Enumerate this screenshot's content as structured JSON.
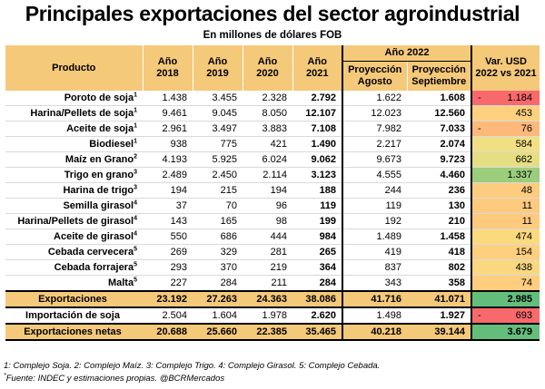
{
  "title": "Principales exportaciones del sector agroindustrial",
  "subtitle": "En millones de dólares FOB",
  "header": {
    "producto": "Producto",
    "y2018": [
      "Año",
      "2018"
    ],
    "y2019": [
      "Año",
      "2019"
    ],
    "y2020": [
      "Año",
      "2020"
    ],
    "y2021": [
      "Año",
      "2021"
    ],
    "group2022": "Año 2022",
    "proy_ago": [
      "Proyección",
      "Agosto"
    ],
    "proy_sep": [
      "Proyección",
      "Septiembre"
    ],
    "var": [
      "Var. USD",
      "2022 vs 2021"
    ]
  },
  "rows": [
    {
      "name": "Poroto de soja",
      "sup": "1",
      "v": [
        "1.438",
        "3.455",
        "2.328",
        "2.792",
        "1.622",
        "1.608"
      ],
      "var": "1.184",
      "neg": true,
      "color": "#f8696b"
    },
    {
      "name": "Harina/Pellets de soja",
      "sup": "1",
      "v": [
        "9.461",
        "9.045",
        "8.050",
        "12.107",
        "12.023",
        "12.560"
      ],
      "var": "453",
      "neg": false,
      "color": "#fdd17f"
    },
    {
      "name": "Aceite de soja",
      "sup": "1",
      "v": [
        "2.961",
        "3.497",
        "3.883",
        "7.108",
        "7.982",
        "7.033"
      ],
      "var": "76",
      "neg": true,
      "color": "#fcb97a"
    },
    {
      "name": "Biodiesel",
      "sup": "1",
      "v": [
        "938",
        "775",
        "421",
        "1.490",
        "2.217",
        "2.074"
      ],
      "var": "584",
      "neg": false,
      "color": "#f0e083"
    },
    {
      "name": "Maíz en Grano",
      "sup": "2",
      "v": [
        "4.193",
        "5.925",
        "6.024",
        "9.062",
        "9.673",
        "9.723"
      ],
      "var": "662",
      "neg": false,
      "color": "#e6de82"
    },
    {
      "name": "Trigo en grano",
      "sup": "3",
      "v": [
        "2.489",
        "2.450",
        "2.114",
        "3.123",
        "4.555",
        "4.460"
      ],
      "var": "1.337",
      "neg": false,
      "color": "#9bcd7c"
    },
    {
      "name": "Harina de trigo",
      "sup": "3",
      "v": [
        "194",
        "215",
        "194",
        "188",
        "244",
        "236"
      ],
      "var": "48",
      "neg": false,
      "color": "#fecc7e"
    },
    {
      "name": "Semilla girasol",
      "sup": "4",
      "v": [
        "37",
        "70",
        "96",
        "119",
        "119",
        "130"
      ],
      "var": "11",
      "neg": false,
      "color": "#feca7e"
    },
    {
      "name": "Harina/Pellets de girasol",
      "sup": "4",
      "v": [
        "143",
        "165",
        "98",
        "199",
        "192",
        "210"
      ],
      "var": "11",
      "neg": false,
      "color": "#feca7e"
    },
    {
      "name": "Aceite de girasol",
      "sup": "4",
      "v": [
        "550",
        "686",
        "444",
        "984",
        "1.489",
        "1.458"
      ],
      "var": "474",
      "neg": false,
      "color": "#fbd97f"
    },
    {
      "name": "Cebada cervecera",
      "sup": "5",
      "v": [
        "269",
        "329",
        "281",
        "265",
        "419",
        "418"
      ],
      "var": "154",
      "neg": false,
      "color": "#fdd07e"
    },
    {
      "name": "Cebada forrajera",
      "sup": "5",
      "v": [
        "293",
        "370",
        "219",
        "364",
        "837",
        "802"
      ],
      "var": "438",
      "neg": false,
      "color": "#f9d880"
    },
    {
      "name": "Malta",
      "sup": "5",
      "v": [
        "227",
        "284",
        "211",
        "284",
        "343",
        "358"
      ],
      "var": "74",
      "neg": false,
      "color": "#fecd7e"
    }
  ],
  "exportaciones": {
    "name": "Exportaciones",
    "v": [
      "23.192",
      "27.263",
      "24.363",
      "38.086",
      "41.716",
      "41.071"
    ],
    "var": "2.985",
    "color": "#63be7b"
  },
  "importacion": {
    "name": "Importación de soja",
    "v": [
      "2.504",
      "1.604",
      "1.978",
      "2.620",
      "1.498",
      "1.927"
    ],
    "var": "693",
    "neg": true,
    "color": "#f8696b"
  },
  "netas": {
    "name": "Exportaciones netas",
    "v": [
      "20.688",
      "25.660",
      "22.385",
      "35.465",
      "40.218",
      "39.144"
    ],
    "var": "3.679",
    "color": "#63be7b"
  },
  "footnote1": "1: Complejo Soja.   2: Complejo Maíz.   3: Complejo Trigo.   4: Complejo Girasol.   5: Complejo Cebada.",
  "footnote2": "Fuente: INDEC y estimaciones propias.  @BCRMercados"
}
